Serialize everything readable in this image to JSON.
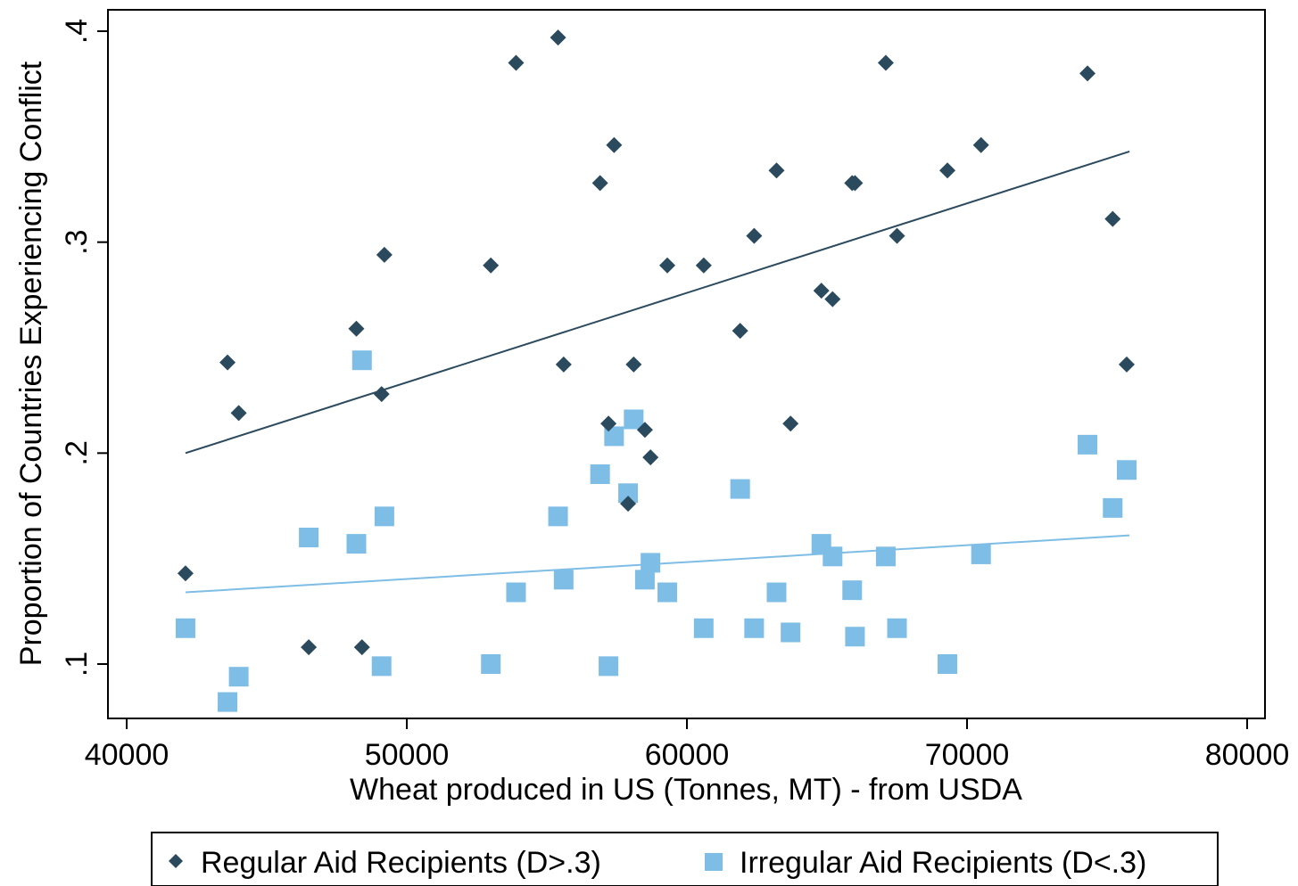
{
  "chart_data": {
    "type": "scatter",
    "xlabel": "Wheat produced in US (Tonnes, MT) - from USDA",
    "ylabel": "Proportion of Countries Experiencing Conflict",
    "xlim": [
      40000,
      80000
    ],
    "ylim": [
      0.075,
      0.41
    ],
    "x_ticks": [
      {
        "value": 40000,
        "label": "40000"
      },
      {
        "value": 50000,
        "label": "50000"
      },
      {
        "value": 60000,
        "label": "60000"
      },
      {
        "value": 70000,
        "label": "70000"
      },
      {
        "value": 80000,
        "label": "80000"
      }
    ],
    "y_ticks": [
      {
        "value": 0.1,
        "label": ".1"
      },
      {
        "value": 0.2,
        "label": ".2"
      },
      {
        "value": 0.3,
        "label": ".3"
      },
      {
        "value": 0.4,
        "label": ".4"
      }
    ],
    "grid": false,
    "legend_position": "bottom",
    "series": [
      {
        "name": "Regular Aid Recipients (D>.3)",
        "marker": "diamond",
        "color": "#2b4a5e",
        "fit_line": {
          "x": [
            42100,
            75800
          ],
          "y": [
            0.2,
            0.343
          ]
        },
        "points": [
          {
            "x": 42100,
            "y": 0.143
          },
          {
            "x": 43600,
            "y": 0.243
          },
          {
            "x": 44000,
            "y": 0.219
          },
          {
            "x": 46500,
            "y": 0.108
          },
          {
            "x": 48200,
            "y": 0.259
          },
          {
            "x": 48400,
            "y": 0.108
          },
          {
            "x": 49100,
            "y": 0.228
          },
          {
            "x": 49200,
            "y": 0.294
          },
          {
            "x": 53000,
            "y": 0.289
          },
          {
            "x": 53900,
            "y": 0.385
          },
          {
            "x": 55400,
            "y": 0.397
          },
          {
            "x": 55600,
            "y": 0.242
          },
          {
            "x": 56900,
            "y": 0.328
          },
          {
            "x": 57200,
            "y": 0.214
          },
          {
            "x": 57400,
            "y": 0.346
          },
          {
            "x": 57900,
            "y": 0.176
          },
          {
            "x": 58100,
            "y": 0.242
          },
          {
            "x": 58500,
            "y": 0.211
          },
          {
            "x": 58700,
            "y": 0.198
          },
          {
            "x": 59300,
            "y": 0.289
          },
          {
            "x": 60600,
            "y": 0.289
          },
          {
            "x": 61900,
            "y": 0.258
          },
          {
            "x": 62400,
            "y": 0.303
          },
          {
            "x": 63200,
            "y": 0.334
          },
          {
            "x": 63700,
            "y": 0.214
          },
          {
            "x": 64800,
            "y": 0.277
          },
          {
            "x": 65200,
            "y": 0.273
          },
          {
            "x": 65900,
            "y": 0.328
          },
          {
            "x": 66000,
            "y": 0.328
          },
          {
            "x": 67100,
            "y": 0.385
          },
          {
            "x": 67500,
            "y": 0.303
          },
          {
            "x": 69300,
            "y": 0.334
          },
          {
            "x": 70500,
            "y": 0.346
          },
          {
            "x": 74300,
            "y": 0.38
          },
          {
            "x": 75200,
            "y": 0.311
          },
          {
            "x": 75700,
            "y": 0.242
          }
        ]
      },
      {
        "name": "Irregular Aid Recipients (D<.3)",
        "marker": "square",
        "color": "#7ebde6",
        "fit_line": {
          "x": [
            42100,
            75800
          ],
          "y": [
            0.134,
            0.161
          ]
        },
        "points": [
          {
            "x": 42100,
            "y": 0.117
          },
          {
            "x": 43600,
            "y": 0.082
          },
          {
            "x": 44000,
            "y": 0.094
          },
          {
            "x": 46500,
            "y": 0.16
          },
          {
            "x": 48200,
            "y": 0.157
          },
          {
            "x": 48400,
            "y": 0.244
          },
          {
            "x": 49100,
            "y": 0.099
          },
          {
            "x": 49200,
            "y": 0.17
          },
          {
            "x": 53000,
            "y": 0.1
          },
          {
            "x": 53900,
            "y": 0.134
          },
          {
            "x": 55400,
            "y": 0.17
          },
          {
            "x": 55600,
            "y": 0.14
          },
          {
            "x": 56900,
            "y": 0.19
          },
          {
            "x": 57200,
            "y": 0.099
          },
          {
            "x": 57400,
            "y": 0.208
          },
          {
            "x": 57900,
            "y": 0.181
          },
          {
            "x": 58100,
            "y": 0.216
          },
          {
            "x": 58500,
            "y": 0.14
          },
          {
            "x": 58700,
            "y": 0.148
          },
          {
            "x": 59300,
            "y": 0.134
          },
          {
            "x": 60600,
            "y": 0.117
          },
          {
            "x": 61900,
            "y": 0.183
          },
          {
            "x": 62400,
            "y": 0.117
          },
          {
            "x": 63200,
            "y": 0.134
          },
          {
            "x": 63700,
            "y": 0.115
          },
          {
            "x": 64800,
            "y": 0.157
          },
          {
            "x": 65200,
            "y": 0.151
          },
          {
            "x": 65900,
            "y": 0.135
          },
          {
            "x": 66000,
            "y": 0.113
          },
          {
            "x": 67100,
            "y": 0.151
          },
          {
            "x": 67500,
            "y": 0.117
          },
          {
            "x": 69300,
            "y": 0.1
          },
          {
            "x": 70500,
            "y": 0.152
          },
          {
            "x": 74300,
            "y": 0.204
          },
          {
            "x": 75200,
            "y": 0.174
          },
          {
            "x": 75700,
            "y": 0.192
          }
        ]
      }
    ]
  }
}
